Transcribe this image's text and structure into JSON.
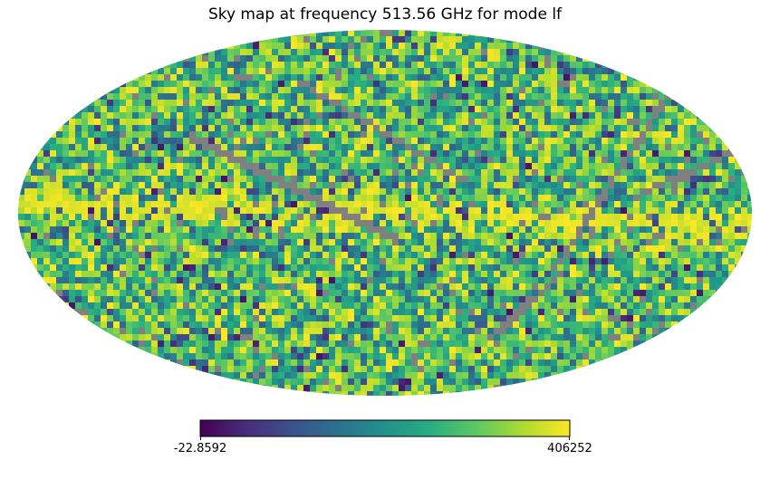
{
  "chart_data": {
    "type": "heatmap",
    "projection": "mollweide",
    "title": "Sky map at frequency 513.56 GHz for mode lf",
    "colormap": "viridis",
    "masked_color": "#808080",
    "colorbar": {
      "orientation": "horizontal",
      "placement": "bottom",
      "min_label": "-22.8592",
      "max_label": "406252",
      "min": -22.8592,
      "max": 406252
    },
    "features": {
      "galactic_plane": "bright yellow band across the map center",
      "masked_regions": "gray scan-pattern stripes"
    }
  }
}
